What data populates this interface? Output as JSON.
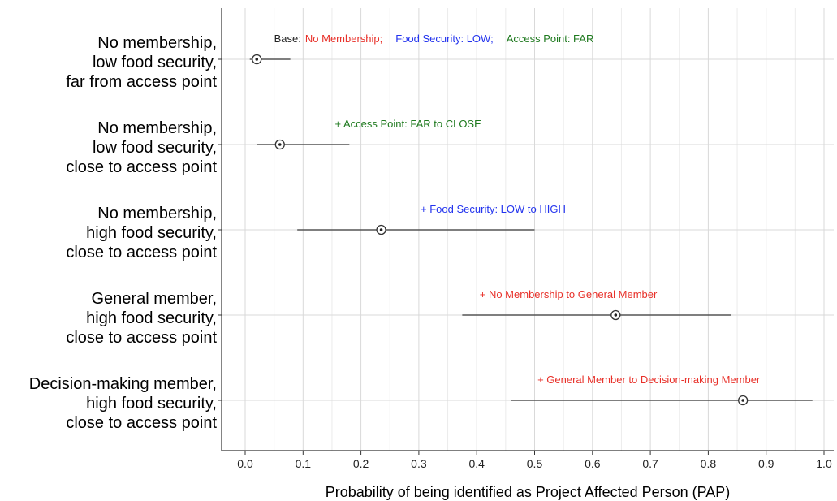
{
  "chart_data": {
    "type": "scatter",
    "title": "",
    "xlabel": "Probability of being identified as Project Affected Person (PAP)",
    "ylabel": "",
    "xlim": [
      -0.04,
      1.02
    ],
    "xticks": [
      "0.0",
      "0.1",
      "0.2",
      "0.3",
      "0.4",
      "0.5",
      "0.6",
      "0.7",
      "0.8",
      "0.9",
      "1.0"
    ],
    "grid": true,
    "legend": "none",
    "categories": [
      {
        "lines": [
          "No membership,",
          "low food security,",
          "far from access point"
        ]
      },
      {
        "lines": [
          "No membership,",
          "low food security,",
          "close to access point"
        ]
      },
      {
        "lines": [
          "No membership,",
          "high food security,",
          "close to access point"
        ]
      },
      {
        "lines": [
          "General member,",
          "high food security,",
          "close to access point"
        ]
      },
      {
        "lines": [
          "Decision-making member,",
          "high food security,",
          "close to access point"
        ]
      }
    ],
    "points": [
      {
        "estimate": 0.02,
        "lower": 0.008,
        "upper": 0.078
      },
      {
        "estimate": 0.06,
        "lower": 0.02,
        "upper": 0.18
      },
      {
        "estimate": 0.235,
        "lower": 0.09,
        "upper": 0.5
      },
      {
        "estimate": 0.64,
        "lower": 0.375,
        "upper": 0.84
      },
      {
        "estimate": 0.86,
        "lower": 0.46,
        "upper": 0.98
      }
    ],
    "annotations": [
      {
        "x": 0.05,
        "segments": [
          {
            "text": "Base:",
            "color": "#222222"
          },
          {
            "text": "No Membership;",
            "color": "#e8312a"
          },
          {
            "text": "Food Security: LOW;",
            "color": "#2233ee"
          },
          {
            "text": "Access Point: FAR",
            "color": "#1f7a1f"
          }
        ]
      },
      {
        "x": 0.155,
        "segments": [
          {
            "text": "+ Access Point: FAR to CLOSE",
            "color": "#1f7a1f"
          }
        ]
      },
      {
        "x": 0.303,
        "segments": [
          {
            "text": "+ Food Security: LOW to HIGH",
            "color": "#2233ee"
          }
        ]
      },
      {
        "x": 0.405,
        "segments": [
          {
            "text": "+ No Membership to General Member",
            "color": "#e8312a"
          }
        ]
      },
      {
        "x": 0.505,
        "segments": [
          {
            "text": "+ General Member to Decision-making Member",
            "color": "#e8312a"
          }
        ]
      }
    ]
  }
}
